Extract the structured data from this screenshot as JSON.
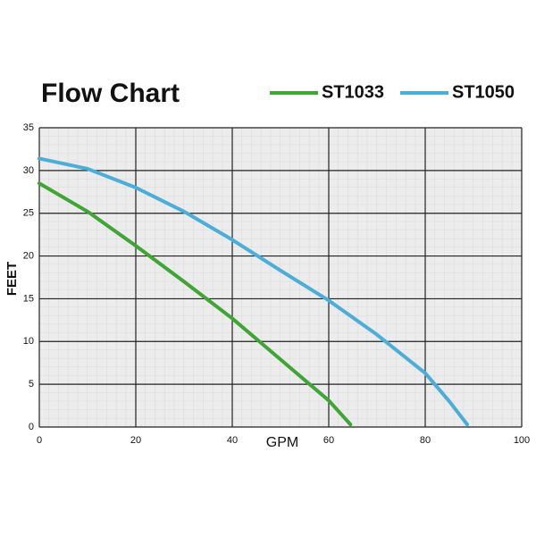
{
  "chart_data": {
    "type": "line",
    "title": "Flow Chart",
    "xlabel": "GPM",
    "ylabel": "FEET",
    "xlim": [
      0,
      100
    ],
    "xticks": [
      0,
      20,
      40,
      60,
      80,
      100
    ],
    "ylim": [
      0,
      35
    ],
    "yticks": [
      0,
      5,
      10,
      15,
      20,
      25,
      30,
      35
    ],
    "grid": true,
    "legend": "top right",
    "series": [
      {
        "name": "ST1033",
        "color": "#3fa535",
        "x": [
          0,
          10,
          20,
          30,
          40,
          50,
          60,
          64.5
        ],
        "values": [
          28.5,
          25.2,
          21.2,
          17,
          12.7,
          7.9,
          3.1,
          0.3
        ]
      },
      {
        "name": "ST1050",
        "color": "#4aaed9",
        "x": [
          0,
          10,
          20,
          30,
          40,
          50,
          60,
          70,
          80,
          85,
          88.7
        ],
        "values": [
          31.4,
          30.2,
          28,
          25.2,
          21.9,
          18.3,
          14.8,
          10.8,
          6.3,
          3,
          0.3
        ]
      }
    ]
  }
}
